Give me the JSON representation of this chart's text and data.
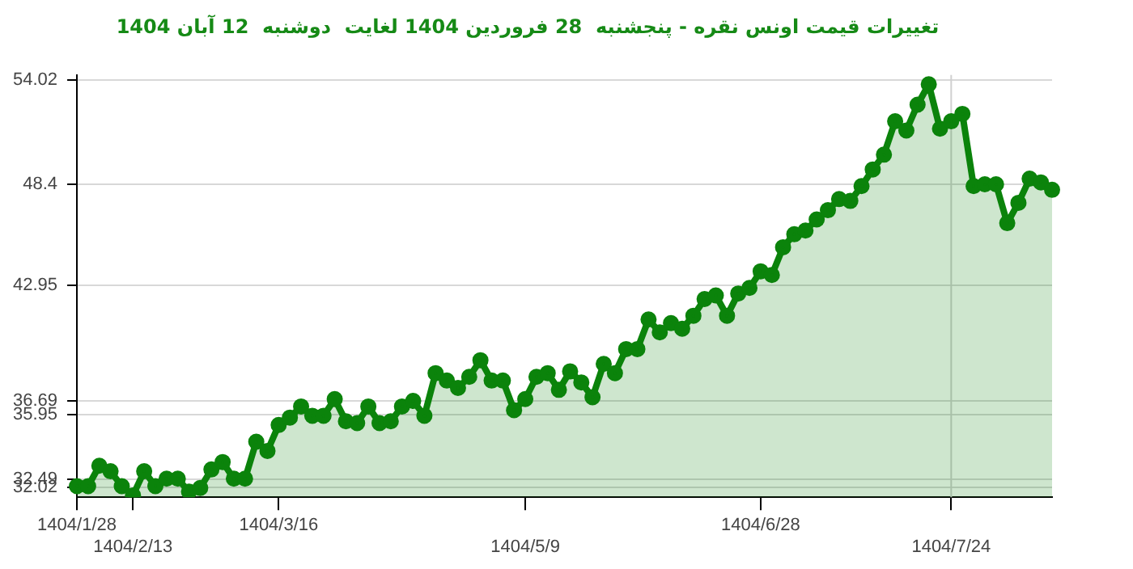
{
  "chart_data": {
    "type": "area",
    "title": "تغییرات قیمت اونس نقره - پنجشنبه  28 فروردین 1404 لغایت  دوشنبه  12 آبان 1404",
    "categories": [
      "1404/1/28",
      null,
      null,
      null,
      null,
      "1404/2/13",
      null,
      null,
      null,
      null,
      null,
      null,
      null,
      null,
      null,
      null,
      null,
      null,
      "1404/3/16",
      null,
      null,
      null,
      null,
      null,
      null,
      null,
      null,
      null,
      null,
      null,
      null,
      null,
      null,
      null,
      null,
      null,
      null,
      null,
      null,
      null,
      "1404/5/9",
      null,
      null,
      null,
      null,
      null,
      null,
      null,
      null,
      null,
      null,
      null,
      null,
      null,
      null,
      null,
      null,
      null,
      null,
      null,
      null,
      "1404/6/28",
      null,
      null,
      null,
      null,
      null,
      null,
      null,
      null,
      null,
      null,
      null,
      null,
      null,
      null,
      null,
      null,
      "1404/7/24",
      null,
      null,
      null,
      null,
      null,
      null,
      null,
      null,
      null
    ],
    "series": [
      {
        "color": "#0b830b",
        "values": [
          32.1,
          32.1,
          33.2,
          32.9,
          32.1,
          31.6,
          32.9,
          32.1,
          32.5,
          32.5,
          31.8,
          32.0,
          33.0,
          33.4,
          32.5,
          32.5,
          34.5,
          34.0,
          35.4,
          35.8,
          36.4,
          35.9,
          35.9,
          36.8,
          35.6,
          35.5,
          36.4,
          35.5,
          35.6,
          36.4,
          36.7,
          35.9,
          38.2,
          37.8,
          37.4,
          38.0,
          38.9,
          37.8,
          37.8,
          36.2,
          36.8,
          38.0,
          38.2,
          37.3,
          38.3,
          37.7,
          36.9,
          38.7,
          38.2,
          39.5,
          39.5,
          41.1,
          40.4,
          40.9,
          40.6,
          41.3,
          42.2,
          42.4,
          41.3,
          42.5,
          42.8,
          43.7,
          43.5,
          45.0,
          45.7,
          45.9,
          46.5,
          47.0,
          47.6,
          47.5,
          48.3,
          49.2,
          50.0,
          51.8,
          51.3,
          52.7,
          53.8,
          51.4,
          51.8,
          52.2,
          48.3,
          48.4,
          48.4,
          46.3,
          47.4,
          48.7,
          48.5,
          48.1
        ]
      }
    ],
    "ylim": [
      31.5,
      54.3
    ],
    "yticks": [
      32.02,
      32.49,
      35.95,
      36.69,
      42.95,
      48.4,
      54.02
    ],
    "grid": "y",
    "marker": "circle",
    "ref_lines": [
      {
        "axis": "x",
        "value": "1404/7/24",
        "color": "#d0d0d0"
      }
    ]
  }
}
